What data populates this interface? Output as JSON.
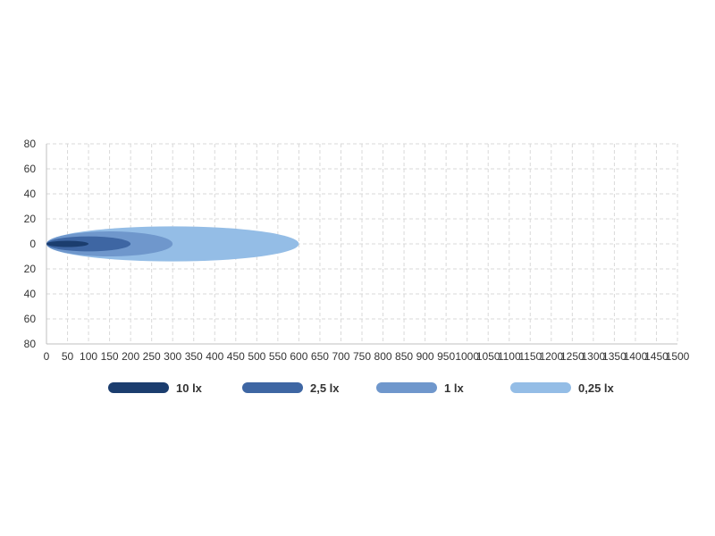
{
  "chart_data": {
    "type": "area",
    "title": "",
    "xlabel": "",
    "ylabel": "",
    "xlim": [
      0,
      1500
    ],
    "ylim": [
      -80,
      80
    ],
    "x_ticks": [
      "0",
      "50",
      "100",
      "150",
      "200",
      "250",
      "300",
      "350",
      "400",
      "450",
      "500",
      "550",
      "600",
      "650",
      "700",
      "750",
      "800",
      "850",
      "900",
      "950",
      "1000",
      "1050",
      "1100",
      "1150",
      "1200",
      "1250",
      "1300",
      "1350",
      "1400",
      "1450",
      "1500"
    ],
    "y_ticks": [
      "80",
      "60",
      "40",
      "20",
      "0",
      "20",
      "40",
      "60",
      "80"
    ],
    "grid": true,
    "legend_position": "bottom",
    "series": [
      {
        "name": "0,25 lx",
        "color": "#94bde6",
        "range_x": [
          0,
          600
        ],
        "half_width_y": 14
      },
      {
        "name": "1 lx",
        "color": "#6f97cc",
        "range_x": [
          0,
          300
        ],
        "half_width_y": 10
      },
      {
        "name": "2,5 lx",
        "color": "#3e66a3",
        "range_x": [
          0,
          200
        ],
        "half_width_y": 6
      },
      {
        "name": "10 lx",
        "color": "#1b3d6e",
        "range_x": [
          0,
          100
        ],
        "half_width_y": 2.5
      }
    ],
    "legend": [
      {
        "name": "10 lx",
        "color": "#1b3d6e"
      },
      {
        "name": "2,5 lx",
        "color": "#3e66a3"
      },
      {
        "name": "1 lx",
        "color": "#6f97cc"
      },
      {
        "name": "0,25 lx",
        "color": "#94bde6"
      }
    ]
  }
}
